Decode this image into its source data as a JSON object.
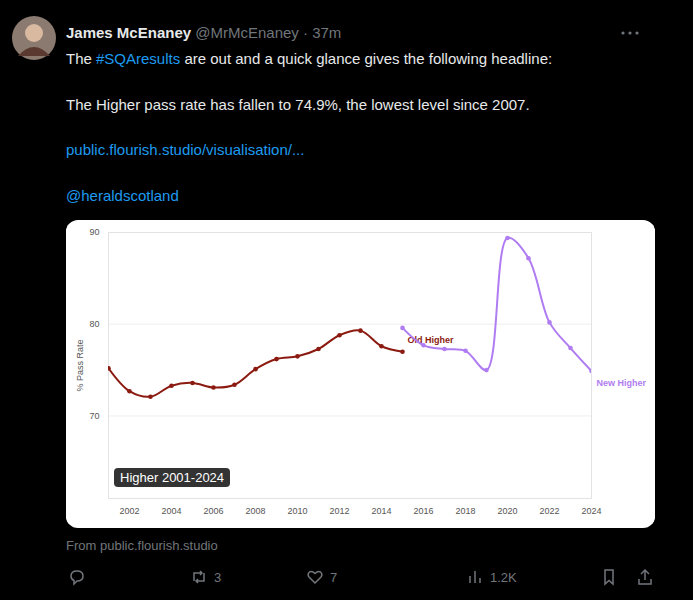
{
  "chart_data": {
    "type": "line",
    "title": "Higher 2001-2024",
    "y_label": "% Pass Rate",
    "x": [
      2001,
      2002,
      2003,
      2004,
      2005,
      2006,
      2007,
      2008,
      2009,
      2010,
      2011,
      2012,
      2013,
      2014,
      2015,
      2016,
      2017,
      2018,
      2019,
      2020,
      2021,
      2022,
      2023,
      2024
    ],
    "series": [
      {
        "name": "Old Higher",
        "color": "#8b1a10",
        "marker": "circle",
        "line_style": "solid",
        "values": [
          75.2,
          72.7,
          72.1,
          73.3,
          73.6,
          73.1,
          73.4,
          75.1,
          76.2,
          76.5,
          77.3,
          78.8,
          79.3,
          77.6,
          77.0,
          null,
          null,
          null,
          null,
          null,
          null,
          null,
          null,
          null
        ]
      },
      {
        "name": "New Higher",
        "color": "#b07cf2",
        "marker": "circle",
        "line_style": "solid",
        "values": [
          null,
          null,
          null,
          null,
          null,
          null,
          null,
          null,
          null,
          null,
          null,
          null,
          null,
          null,
          79.6,
          77.7,
          77.3,
          77.1,
          75.0,
          89.4,
          87.2,
          80.2,
          77.4,
          74.9
        ]
      }
    ],
    "xlim": [
      2001,
      2024
    ],
    "xticks": [
      2002,
      2004,
      2006,
      2008,
      2010,
      2012,
      2014,
      2016,
      2018,
      2020,
      2022,
      2024
    ],
    "ylim": [
      61,
      90
    ],
    "yticks": [
      70,
      80,
      90
    ],
    "grid": true
  },
  "tweet": {
    "name": "James McEnaney",
    "handle": "@MrMcEnaney · 37m",
    "intro_before": "The ",
    "hashtag": "#SQAresults",
    "intro_after": " are out and a quick glance gives the following headline:",
    "headline": "The Higher pass rate has fallen to 74.9%, the lowest level since 2007.",
    "link": "public.flourish.studio/visualisation/...",
    "mention": "@heraldscotland",
    "source": "From public.flourish.studio",
    "retweets": "3",
    "likes": "7",
    "views": "1.2K"
  }
}
